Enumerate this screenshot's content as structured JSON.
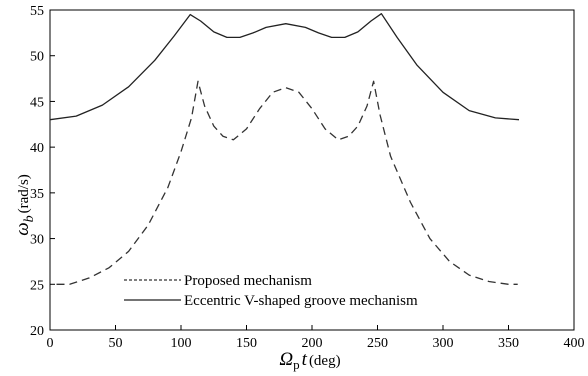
{
  "chart_data": {
    "type": "line",
    "xlim": [
      0,
      400
    ],
    "ylim": [
      20,
      55
    ],
    "xticks": [
      "0",
      "50",
      "100",
      "150",
      "200",
      "250",
      "300",
      "350",
      "400"
    ],
    "yticks": [
      "20",
      "25",
      "30",
      "35",
      "40",
      "45",
      "50",
      "55"
    ],
    "xlabel": {
      "symbol": "Ω",
      "subscript": "p",
      "variable": "t",
      "unit": "(deg)"
    },
    "ylabel": {
      "symbol": "ω",
      "subscript": "b",
      "unit": "(rad/s)"
    },
    "grid": false,
    "legend_position": "bottom-center",
    "series": [
      {
        "name": "Eccentric V-shaped groove mechanism",
        "style": "solid",
        "color": "#222222",
        "x": [
          0,
          20,
          40,
          60,
          80,
          95,
          107,
          115,
          125,
          135,
          145,
          155,
          165,
          180,
          195,
          205,
          215,
          225,
          235,
          245,
          253,
          265,
          280,
          300,
          320,
          340,
          358
        ],
        "y": [
          43.0,
          43.4,
          44.6,
          46.6,
          49.5,
          52.2,
          54.5,
          53.8,
          52.6,
          52.0,
          52.0,
          52.5,
          53.1,
          53.5,
          53.1,
          52.5,
          52.0,
          52.0,
          52.6,
          53.8,
          54.6,
          52.0,
          49.0,
          46.0,
          44.0,
          43.2,
          43.0
        ]
      },
      {
        "name": "Proposed mechanism",
        "style": "dashed",
        "color": "#333333",
        "x": [
          5,
          15,
          30,
          45,
          60,
          75,
          90,
          100,
          108,
          113,
          118,
          125,
          132,
          140,
          150,
          160,
          170,
          180,
          190,
          200,
          210,
          220,
          228,
          235,
          242,
          247,
          252,
          260,
          275,
          290,
          305,
          320,
          335,
          350,
          357
        ],
        "y": [
          25.0,
          25.0,
          25.7,
          26.8,
          28.6,
          31.5,
          35.6,
          39.5,
          43.2,
          47.2,
          44.5,
          42.3,
          41.2,
          40.8,
          42.0,
          44.2,
          46.0,
          46.5,
          46.0,
          44.2,
          42.0,
          40.8,
          41.2,
          42.3,
          44.5,
          47.2,
          43.5,
          39.0,
          34.0,
          30.0,
          27.5,
          26.0,
          25.3,
          25.0,
          25.0
        ]
      }
    ]
  }
}
